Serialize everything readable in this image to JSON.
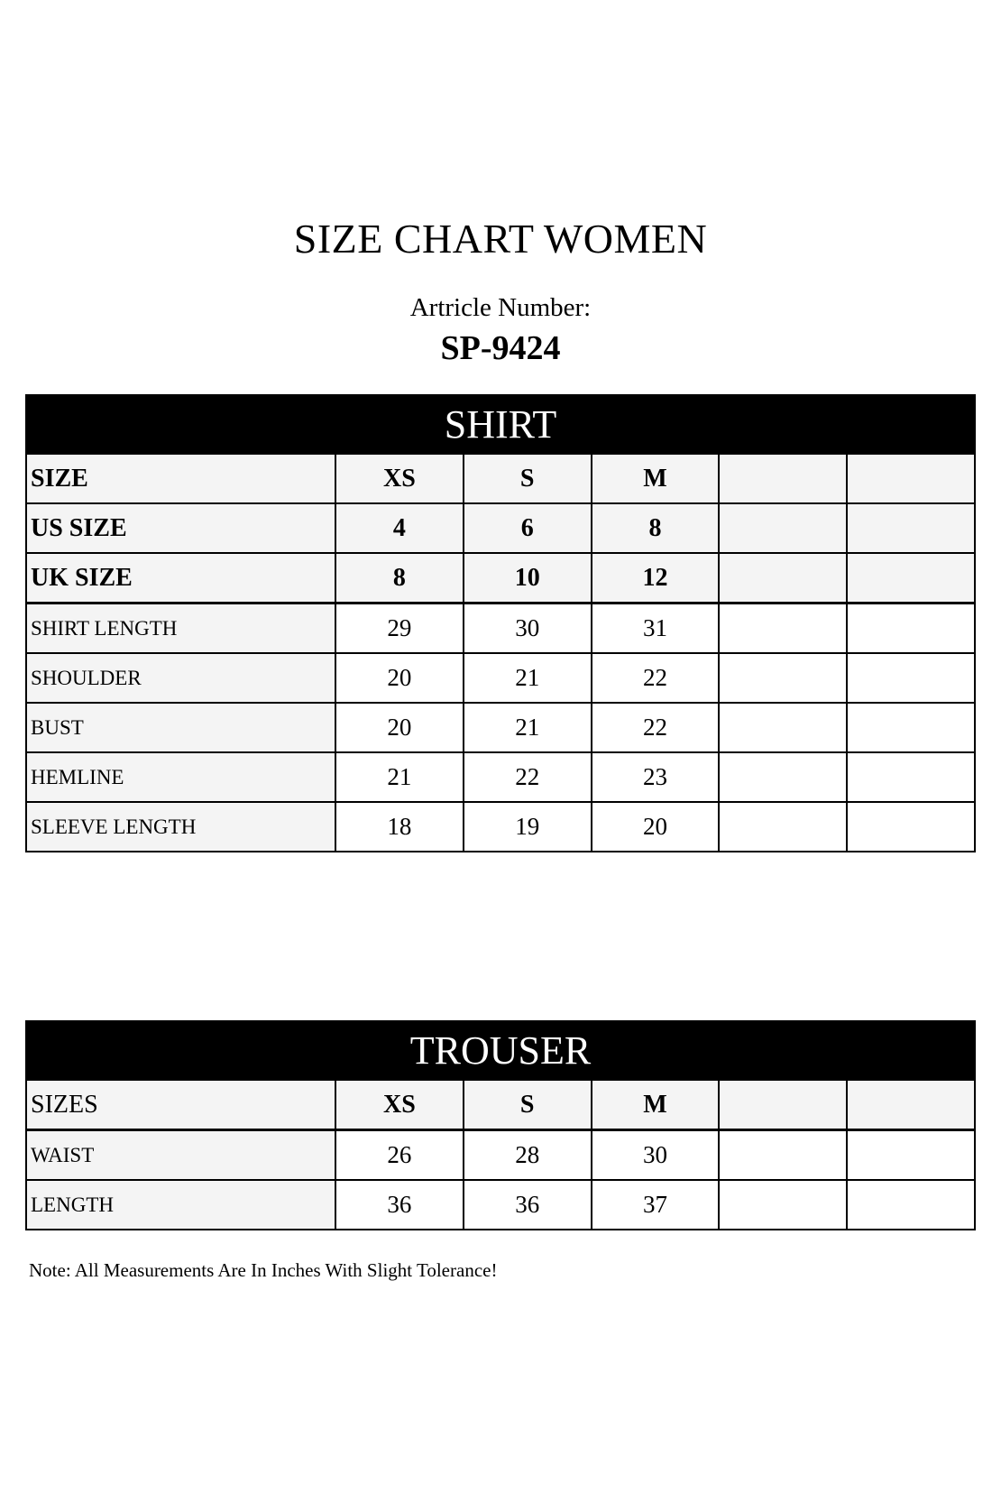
{
  "title": "SIZE CHART WOMEN",
  "article_label": "Artricle Number:",
  "article_number": "SP-9424",
  "shirt": {
    "title": "SHIRT",
    "header_rows": [
      {
        "label": "SIZE",
        "values": [
          "XS",
          "S",
          "M",
          "",
          ""
        ]
      },
      {
        "label": "US SIZE",
        "values": [
          "4",
          "6",
          "8",
          "",
          ""
        ]
      },
      {
        "label": "UK SIZE",
        "values": [
          "8",
          "10",
          "12",
          "",
          ""
        ]
      }
    ],
    "rows": [
      {
        "label": "SHIRT LENGTH",
        "values": [
          "29",
          "30",
          "31",
          "",
          ""
        ]
      },
      {
        "label": "SHOULDER",
        "values": [
          "20",
          "21",
          "22",
          "",
          ""
        ]
      },
      {
        "label": "BUST",
        "values": [
          "20",
          "21",
          "22",
          "",
          ""
        ]
      },
      {
        "label": "HEMLINE",
        "values": [
          "21",
          "22",
          "23",
          "",
          ""
        ]
      },
      {
        "label": "SLEEVE LENGTH",
        "values": [
          "18",
          "19",
          "20",
          "",
          ""
        ]
      }
    ]
  },
  "trouser": {
    "title": "TROUSER",
    "header_rows": [
      {
        "label": "SIZES",
        "values": [
          "XS",
          "S",
          "M",
          "",
          ""
        ]
      }
    ],
    "rows": [
      {
        "label": "WAIST",
        "values": [
          "26",
          "28",
          "30",
          "",
          ""
        ]
      },
      {
        "label": "LENGTH",
        "values": [
          "36",
          "36",
          "37",
          "",
          ""
        ]
      }
    ]
  },
  "note": "Note: All Measurements Are In Inches With Slight Tolerance!"
}
